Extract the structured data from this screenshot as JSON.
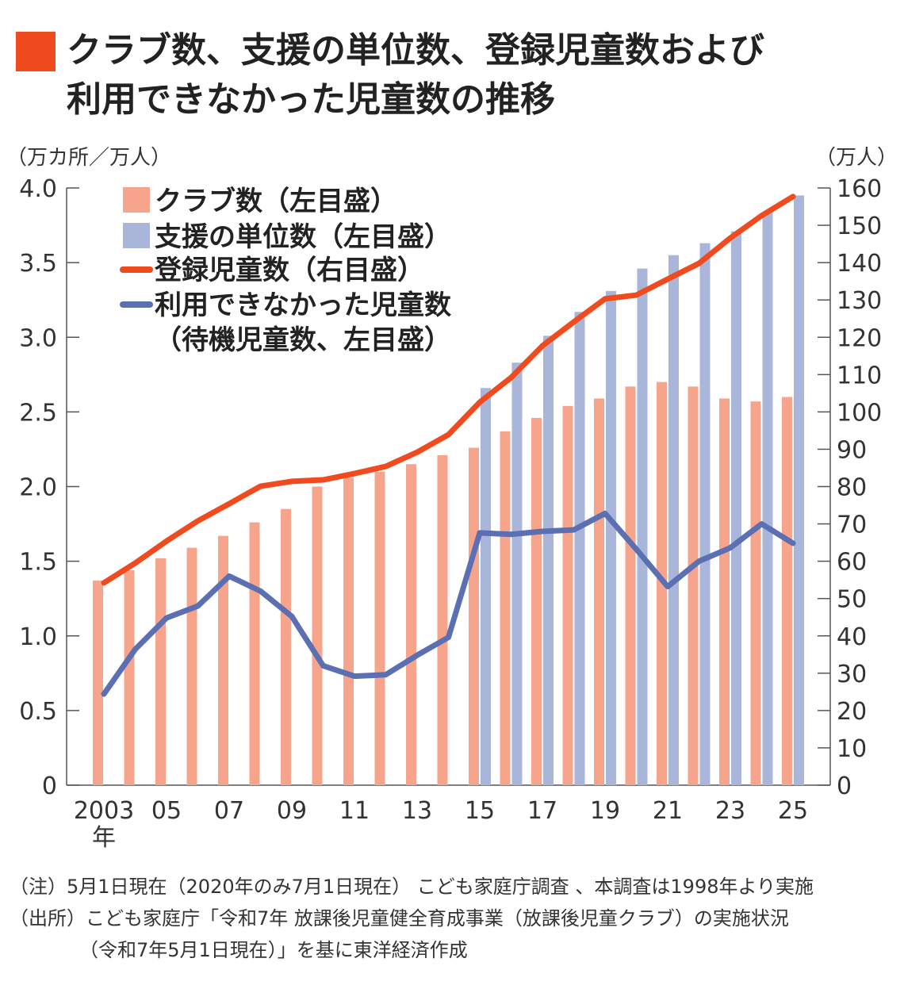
{
  "title": {
    "line1": "クラブ数、支援の単位数、登録児童数および",
    "line2": "利用できなかった児童数の推移",
    "mark_color": "#f04b1e"
  },
  "left_unit": "（万カ所／万人）",
  "right_unit": "（万人）",
  "notes": [
    "（注）5月1日現在（2020年のみ7月1日現在） こども家庭庁調査 、本調査は1998年より実施",
    "（出所）こども家庭庁「令和7年  放課後児童健全育成事業（放課後児童クラブ）の実施状況",
    "（令和7年5月1日現在）」を基に東洋経済作成"
  ],
  "chart_data": {
    "type": "bar+line",
    "x": [
      2003,
      2004,
      2005,
      2006,
      2007,
      2008,
      2009,
      2010,
      2011,
      2012,
      2013,
      2014,
      2015,
      2016,
      2017,
      2018,
      2019,
      2020,
      2021,
      2022,
      2023,
      2024,
      2025
    ],
    "x_tick_labels": [
      "2003",
      "05",
      "07",
      "09",
      "11",
      "13",
      "15",
      "17",
      "19",
      "21",
      "23",
      "25"
    ],
    "x_tick_years": [
      2003,
      2005,
      2007,
      2009,
      2011,
      2013,
      2015,
      2017,
      2019,
      2021,
      2023,
      2025
    ],
    "x_unit_label": "年",
    "yleft": {
      "lim": [
        0,
        4.0
      ],
      "ticks": [
        "0",
        "0.5",
        "1.0",
        "1.5",
        "2.0",
        "2.5",
        "3.0",
        "3.5",
        "4.0"
      ]
    },
    "yright": {
      "lim": [
        0,
        160
      ],
      "ticks": [
        "0",
        "10",
        "20",
        "30",
        "40",
        "50",
        "60",
        "70",
        "80",
        "90",
        "100",
        "110",
        "120",
        "130",
        "140",
        "150",
        "160"
      ]
    },
    "legend_placement": "top-left",
    "series": [
      {
        "name": "クラブ数（左目盛）",
        "kind": "bar",
        "axis": "left",
        "color": "#f7a48c",
        "values": [
          1.37,
          1.44,
          1.52,
          1.59,
          1.67,
          1.76,
          1.85,
          2.0,
          2.06,
          2.1,
          2.15,
          2.21,
          2.26,
          2.37,
          2.46,
          2.54,
          2.59,
          2.67,
          2.7,
          2.67,
          2.59,
          2.57,
          2.6
        ]
      },
      {
        "name": "支援の単位数（左目盛）",
        "kind": "bar",
        "axis": "left",
        "color": "#a9b6da",
        "values": [
          null,
          null,
          null,
          null,
          null,
          null,
          null,
          null,
          null,
          null,
          null,
          null,
          2.66,
          2.83,
          3.01,
          3.17,
          3.31,
          3.46,
          3.55,
          3.63,
          3.71,
          3.84,
          3.95
        ]
      },
      {
        "name": "登録児童数（右目盛）",
        "kind": "line",
        "axis": "right",
        "color": "#f04b1e",
        "values": [
          54.2,
          59.5,
          65.4,
          70.8,
          75.4,
          80.1,
          81.4,
          81.8,
          83.5,
          85.4,
          89.2,
          93.9,
          102.6,
          109.2,
          117.7,
          124.1,
          130.3,
          131.3,
          135.6,
          139.8,
          146.6,
          152.6,
          157.7
        ]
      },
      {
        "name": "利用できなかった児童数",
        "name2": "（待機児童数、左目盛）",
        "kind": "line",
        "axis": "left",
        "color": "#5b6fb3",
        "values": [
          0.61,
          0.91,
          1.12,
          1.2,
          1.4,
          1.3,
          1.13,
          0.8,
          0.73,
          0.74,
          0.87,
          0.99,
          1.69,
          1.68,
          1.7,
          1.71,
          1.82,
          1.58,
          1.33,
          1.5,
          1.59,
          1.75,
          1.62
        ]
      }
    ]
  }
}
